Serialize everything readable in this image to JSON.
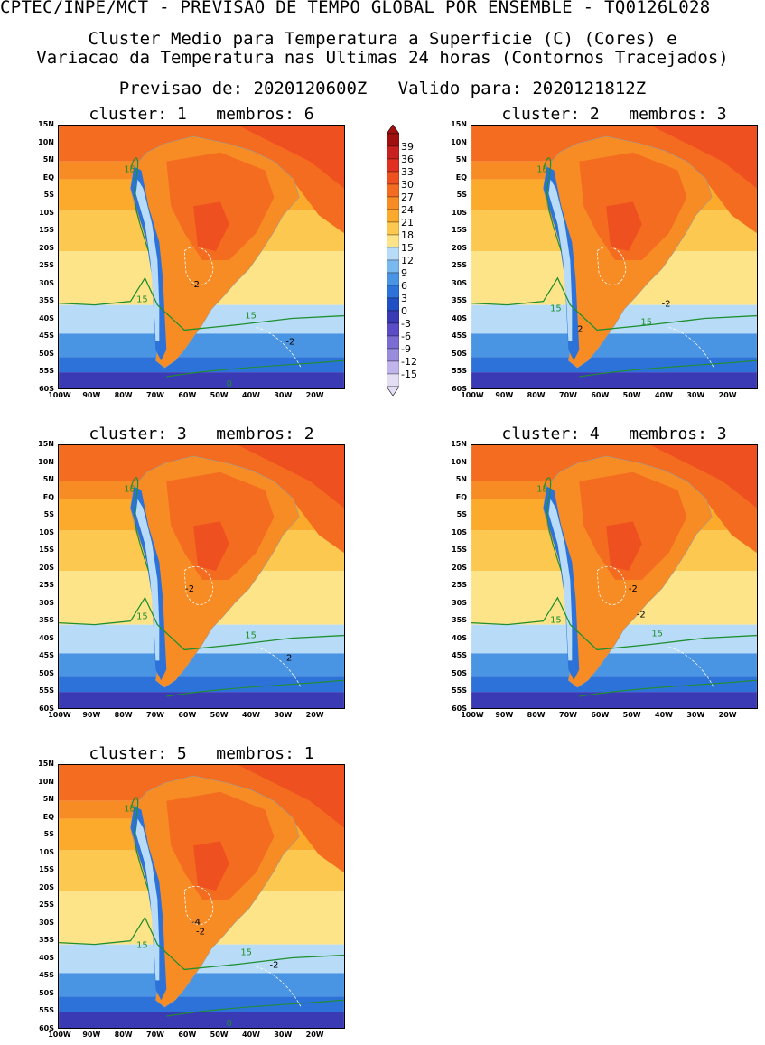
{
  "header": {
    "line1": "CPTEC/INPE/MCT - PREVISAO DE TEMPO GLOBAL POR ENSEMBLE - TQ0126L028",
    "line2": "Cluster Medio para Temperatura a Superficie (C) (Cores) e",
    "line3": "Variacao da Temperatura nas Ultimas 24 horas (Contornos Tracejados)",
    "line4": "Previsao de: 2020120600Z   Valido para: 2020121812Z"
  },
  "lat_labels": [
    "15N",
    "10N",
    "5N",
    "EQ",
    "5S",
    "10S",
    "15S",
    "20S",
    "25S",
    "30S",
    "35S",
    "40S",
    "45S",
    "50S",
    "55S",
    "60S"
  ],
  "lon_labels": [
    "100W",
    "90W",
    "80W",
    "70W",
    "60W",
    "50W",
    "40W",
    "30W",
    "20W"
  ],
  "colorbar": {
    "ticks": [
      "39",
      "36",
      "33",
      "30",
      "27",
      "24",
      "21",
      "18",
      "15",
      "12",
      "9",
      "6",
      "3",
      "0",
      "-3",
      "-6",
      "-9",
      "-12",
      "-15"
    ],
    "colors": [
      "#a01010",
      "#c82020",
      "#e03020",
      "#ee5020",
      "#f46c20",
      "#f88c24",
      "#fbaa2c",
      "#fcc850",
      "#fde488",
      "#b8dcf8",
      "#7ab8f0",
      "#4a94e4",
      "#2c72d8",
      "#2050c4",
      "#3a3ab4",
      "#5a4cc4",
      "#7a6cd0",
      "#9a8cdc",
      "#c0b4ea",
      "#e4def4"
    ]
  },
  "panels": [
    {
      "title": "cluster: 1   membros: 6",
      "labels": [
        {
          "text": "15",
          "color": "green",
          "x": 79,
          "y": 52
        },
        {
          "text": "15",
          "color": "green",
          "x": 93,
          "y": 197
        },
        {
          "text": "15",
          "color": "green",
          "x": 214,
          "y": 215
        },
        {
          "text": "-2",
          "color": "black",
          "x": 152,
          "y": 180
        },
        {
          "text": "-2",
          "color": "black",
          "x": 258,
          "y": 244
        },
        {
          "text": "0",
          "color": "green",
          "x": 190,
          "y": 291
        }
      ]
    },
    {
      "title": "cluster: 2   membros: 3",
      "labels": [
        {
          "text": "15",
          "color": "green",
          "x": 79,
          "y": 52
        },
        {
          "text": "15",
          "color": "green",
          "x": 94,
          "y": 207
        },
        {
          "text": "15",
          "color": "green",
          "x": 195,
          "y": 222
        },
        {
          "text": "2",
          "color": "black",
          "x": 121,
          "y": 230
        },
        {
          "text": "-2",
          "color": "black",
          "x": 217,
          "y": 202
        }
      ]
    },
    {
      "title": "cluster: 3   membros: 2",
      "labels": [
        {
          "text": "15",
          "color": "green",
          "x": 79,
          "y": 52
        },
        {
          "text": "15",
          "color": "green",
          "x": 93,
          "y": 194
        },
        {
          "text": "15",
          "color": "green",
          "x": 214,
          "y": 215
        },
        {
          "text": "-2",
          "color": "black",
          "x": 146,
          "y": 163
        },
        {
          "text": "-2",
          "color": "black",
          "x": 255,
          "y": 240
        }
      ]
    },
    {
      "title": "cluster: 4   membros: 3",
      "labels": [
        {
          "text": "15",
          "color": "green",
          "x": 79,
          "y": 52
        },
        {
          "text": "15",
          "color": "green",
          "x": 94,
          "y": 198
        },
        {
          "text": "15",
          "color": "green",
          "x": 207,
          "y": 213
        },
        {
          "text": "-2",
          "color": "black",
          "x": 180,
          "y": 163
        },
        {
          "text": "-2",
          "color": "black",
          "x": 189,
          "y": 192
        }
      ]
    },
    {
      "title": "cluster: 5   membros: 1",
      "labels": [
        {
          "text": "15",
          "color": "green",
          "x": 79,
          "y": 52
        },
        {
          "text": "15",
          "color": "green",
          "x": 93,
          "y": 204
        },
        {
          "text": "15",
          "color": "green",
          "x": 209,
          "y": 212
        },
        {
          "text": "-4",
          "color": "black",
          "x": 153,
          "y": 178
        },
        {
          "text": "-2",
          "color": "black",
          "x": 158,
          "y": 189
        },
        {
          "text": "-2",
          "color": "black",
          "x": 240,
          "y": 226
        },
        {
          "text": "0",
          "color": "green",
          "x": 190,
          "y": 291
        }
      ]
    }
  ]
}
